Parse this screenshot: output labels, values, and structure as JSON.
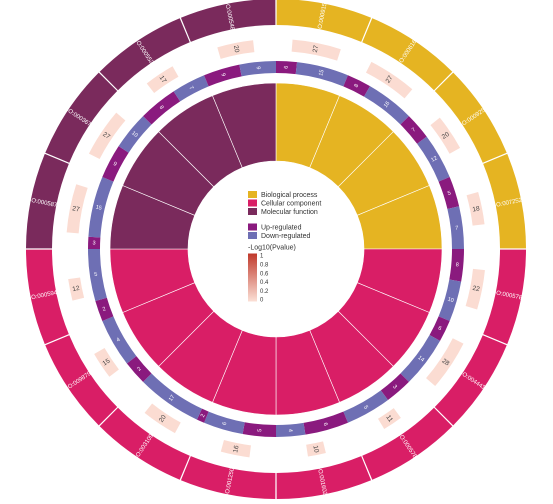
{
  "chart_data": {
    "type": "circular-go-enrichment",
    "title": "",
    "terms": [
      {
        "id": "GO:0009150",
        "category": "bp",
        "total": 27,
        "up": 6,
        "down": 15
      },
      {
        "id": "GO:0006163",
        "category": "bp",
        "total": 27,
        "up": 8,
        "down": 16
      },
      {
        "id": "GO:0009259",
        "category": "bp",
        "total": 20,
        "up": 7,
        "down": 12
      },
      {
        "id": "GO:0072521",
        "category": "bp",
        "total": 18,
        "up": 5,
        "down": 7
      },
      {
        "id": "GO:0005788",
        "category": "cc",
        "total": 22,
        "up": 8,
        "down": 10
      },
      {
        "id": "GO:0044432",
        "category": "cc",
        "total": 28,
        "up": 6,
        "down": 14
      },
      {
        "id": "GO:0005783",
        "category": "cc",
        "total": 11,
        "up": 3,
        "down": 5
      },
      {
        "id": "GO:0016020",
        "category": "cc",
        "total": 10,
        "up": 6,
        "down": 4
      },
      {
        "id": "GO:0012505",
        "category": "cc",
        "total": 16,
        "up": 5,
        "down": 6
      },
      {
        "id": "GO:0031090",
        "category": "cc",
        "total": 20,
        "up": 2,
        "down": 17
      },
      {
        "id": "GO:0098796",
        "category": "cc",
        "total": 15,
        "up": 2,
        "down": 4
      },
      {
        "id": "GO:0005944",
        "category": "cc",
        "total": 12,
        "up": 2,
        "down": 5
      },
      {
        "id": "GO:0005874",
        "category": "mf",
        "total": 27,
        "up": 3,
        "down": 15
      },
      {
        "id": "GO:0003674",
        "category": "mf",
        "total": 27,
        "up": 9,
        "down": 10
      },
      {
        "id": "GO:0005524",
        "category": "mf",
        "total": 17,
        "up": 8,
        "down": 7
      },
      {
        "id": "GO:0005488",
        "category": "mf",
        "total": 20,
        "up": 9,
        "down": 9
      }
    ],
    "legend": {
      "categories": [
        {
          "key": "bp",
          "label": "Biological process",
          "color": "#e5b422"
        },
        {
          "key": "cc",
          "label": "Cellular component",
          "color": "#d91e66"
        },
        {
          "key": "mf",
          "label": "Molecular function",
          "color": "#7a2a5c"
        }
      ],
      "regulation": [
        {
          "label": "Up-regulated",
          "color": "#8a1a7e"
        },
        {
          "label": "Down-regulated",
          "color": "#6e6fb4"
        }
      ],
      "gradient_title": "-Log10(Pvalue)",
      "gradient_ticks": [
        "1",
        "0.8",
        "0.6",
        "0.4",
        "0.2",
        "0"
      ],
      "gradient_colors": {
        "high": "#c0392b",
        "low": "#fbe0d6"
      }
    },
    "colors": {
      "count_bar": "#fbdcd2",
      "ring_gap": "#ffffff"
    }
  }
}
